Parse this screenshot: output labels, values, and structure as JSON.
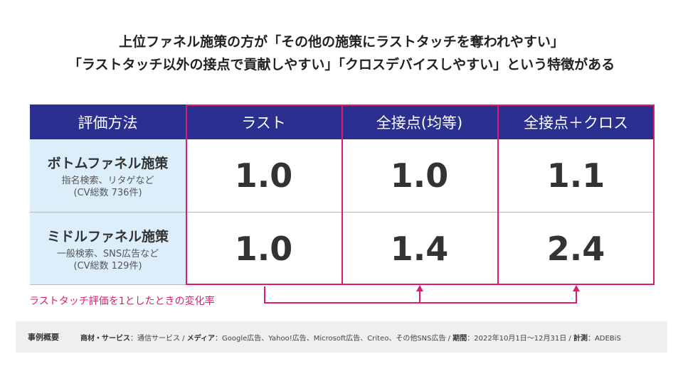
{
  "headline": {
    "line1": "上位ファネル施策の方が「その他の施策にラストタッチを奪われやすい」",
    "line2": "「ラストタッチ以外の接点で貢献しやすい」「クロスデバイスしやすい」という特徴がある"
  },
  "table": {
    "header": [
      "評価方法",
      "ラスト",
      "全接点(均等)",
      "全接点＋クロス"
    ],
    "rows": [
      {
        "title": "ボトムファネル施策",
        "sub1": "指名検索、リタゲなど",
        "sub2": "(CV総数 736件)",
        "values": [
          "1.0",
          "1.0",
          "1.1"
        ]
      },
      {
        "title": "ミドルファネル施策",
        "sub1": "一般検索、SNS広告など",
        "sub2": "(CV総数 129件)",
        "values": [
          "1.0",
          "1.4",
          "2.4"
        ]
      }
    ]
  },
  "change_label": "ラストタッチ評価を1としたときの変化率",
  "footer": {
    "title": "事例概要",
    "k1": "商材・サービス",
    "v1": "：通信サービス / ",
    "k2": "メディア",
    "v2": "：Google広告、Yahoo!広告、Microsoft広告、Criteo、その他SNS広告 / ",
    "k3": "期間",
    "v3": "：2022年10月1日～12月31日 / ",
    "k4": "計測",
    "v4": "：ADEBiS"
  },
  "colors": {
    "header_bg": "#2a2f90",
    "row_header_bg": "#dceefa",
    "accent": "#e01a6e"
  }
}
